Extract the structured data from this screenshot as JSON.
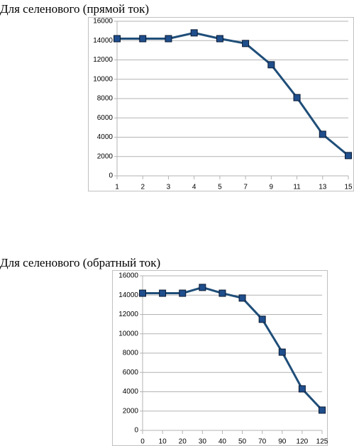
{
  "chart_data": [
    {
      "type": "line",
      "title": "Для селенового (прямой ток)",
      "categories": [
        "1",
        "2",
        "3",
        "4",
        "5",
        "7",
        "9",
        "11",
        "13",
        "15"
      ],
      "values": [
        14200,
        14200,
        14200,
        14800,
        14200,
        13700,
        11500,
        8100,
        4300,
        2100
      ],
      "color": "#1f4e79",
      "marker_color": "#1f4e8c",
      "ylim": [
        0,
        16000
      ],
      "yticks": [
        0,
        2000,
        4000,
        6000,
        8000,
        10000,
        12000,
        14000,
        16000
      ],
      "grid": true
    },
    {
      "type": "line",
      "title": "Для селенового (обратный ток)",
      "categories": [
        "0",
        "10",
        "20",
        "30",
        "40",
        "50",
        "70",
        "90",
        "120",
        "125"
      ],
      "values": [
        14200,
        14200,
        14200,
        14800,
        14200,
        13700,
        11500,
        8100,
        4300,
        2100
      ],
      "color": "#1f4e79",
      "marker_color": "#1f4e8c",
      "ylim": [
        0,
        16000
      ],
      "yticks": [
        0,
        2000,
        4000,
        6000,
        8000,
        10000,
        12000,
        14000,
        16000
      ],
      "grid": true
    }
  ]
}
